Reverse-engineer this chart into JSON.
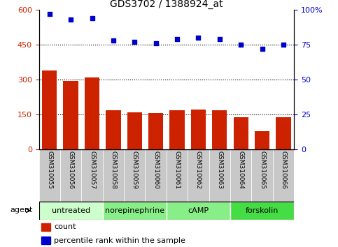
{
  "title": "GDS3702 / 1388924_at",
  "samples": [
    "GSM310055",
    "GSM310056",
    "GSM310057",
    "GSM310058",
    "GSM310059",
    "GSM310060",
    "GSM310061",
    "GSM310062",
    "GSM310063",
    "GSM310064",
    "GSM310065",
    "GSM310066"
  ],
  "counts": [
    340,
    293,
    308,
    168,
    160,
    156,
    168,
    172,
    168,
    140,
    80,
    140
  ],
  "percentiles": [
    97,
    93,
    94,
    78,
    77,
    76,
    79,
    80,
    79,
    75,
    72,
    75
  ],
  "bar_color": "#cc2200",
  "dot_color": "#0000cc",
  "left_ylim": [
    0,
    600
  ],
  "right_ylim": [
    0,
    100
  ],
  "left_yticks": [
    0,
    150,
    300,
    450,
    600
  ],
  "right_yticks": [
    0,
    25,
    50,
    75,
    100
  ],
  "right_yticklabels": [
    "0",
    "25",
    "50",
    "75",
    "100%"
  ],
  "hlines": [
    150,
    300,
    450
  ],
  "agent_groups": [
    {
      "label": "untreated",
      "start": 0,
      "end": 3,
      "color": "#ccffcc"
    },
    {
      "label": "norepinephrine",
      "start": 3,
      "end": 6,
      "color": "#88ee88"
    },
    {
      "label": "cAMP",
      "start": 6,
      "end": 9,
      "color": "#88ee88"
    },
    {
      "label": "forskolin",
      "start": 9,
      "end": 12,
      "color": "#44dd44"
    }
  ],
  "tick_area_color": "#c8c8c8",
  "left_tick_color": "#cc2200",
  "right_tick_color": "#0000cc",
  "label_fontsize": 6.5,
  "agent_fontsize": 8,
  "title_fontsize": 10
}
